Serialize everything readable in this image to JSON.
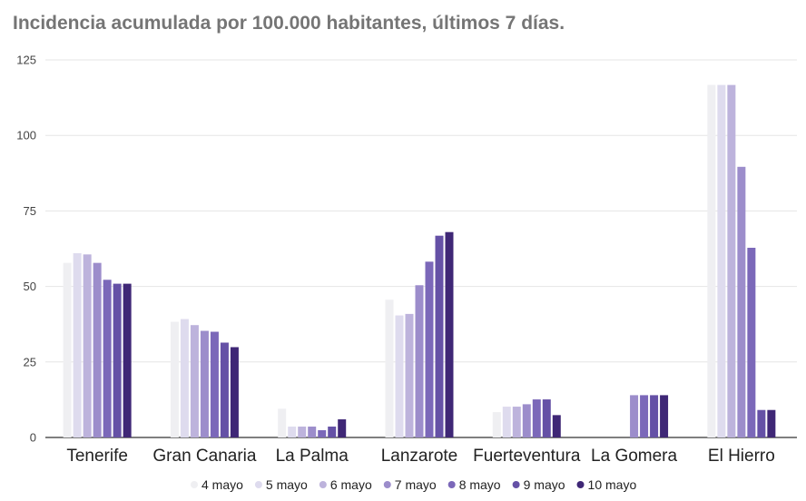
{
  "title": "Incidencia acumulada por 100.000 habitantes, últimos 7 días.",
  "colors": {
    "title": "#757575",
    "series": [
      "#efeff2",
      "#dedbee",
      "#bdb3dc",
      "#9c8dcb",
      "#7b68b9",
      "#6551a6",
      "#3f2776"
    ]
  },
  "chart_data": {
    "type": "bar",
    "title": "Incidencia acumulada por 100.000 habitantes, últimos 7 días.",
    "xlabel": "",
    "ylabel": "",
    "ylim": [
      0,
      125
    ],
    "yticks": [
      0,
      25,
      50,
      75,
      100,
      125
    ],
    "grid": true,
    "legend_position": "bottom",
    "categories": [
      "Tenerife",
      "Gran Canaria",
      "La Palma",
      "Lanzarote",
      "Fuerteventura",
      "La Gomera",
      "El Hierro"
    ],
    "series": [
      {
        "name": "4 mayo",
        "values": [
          57.8,
          38.3,
          9.5,
          45.6,
          8.4,
          0,
          116.7
        ]
      },
      {
        "name": "5 mayo",
        "values": [
          61.0,
          39.2,
          3.6,
          40.4,
          10.2,
          0,
          116.7
        ]
      },
      {
        "name": "6 mayo",
        "values": [
          60.6,
          37.2,
          3.6,
          40.9,
          10.2,
          0,
          116.7
        ]
      },
      {
        "name": "7 mayo",
        "values": [
          57.8,
          35.3,
          3.6,
          50.4,
          11.0,
          14.0,
          89.6
        ]
      },
      {
        "name": "8 mayo",
        "values": [
          52.2,
          35.0,
          2.4,
          58.2,
          12.6,
          14.0,
          62.8
        ]
      },
      {
        "name": "9 mayo",
        "values": [
          50.9,
          31.4,
          3.6,
          66.8,
          12.6,
          14.0,
          9.1
        ]
      },
      {
        "name": "10 mayo",
        "values": [
          50.9,
          29.9,
          6.0,
          68.0,
          7.4,
          14.0,
          9.1
        ]
      }
    ]
  }
}
